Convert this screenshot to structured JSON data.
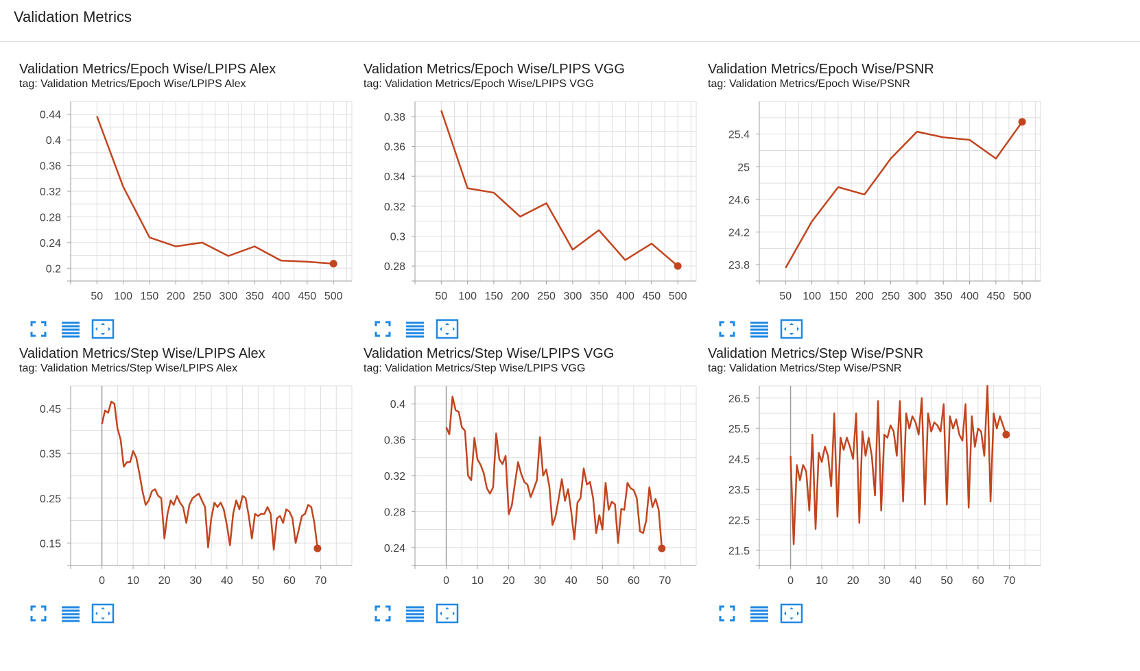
{
  "header": {
    "title": "Validation Metrics"
  },
  "colors": {
    "line": "#C2451F",
    "grid": "#dddddd",
    "axis": "#9e9e9e",
    "icon": "#1e88e5"
  },
  "toolbar": {
    "icons": [
      "fullscreen-icon",
      "list-icon",
      "fit-domain-icon"
    ]
  },
  "chart_data": [
    {
      "type": "line",
      "title": "Validation Metrics/Epoch Wise/LPIPS Alex",
      "tag": "tag: Validation Metrics/Epoch Wise/LPIPS Alex",
      "xlim": [
        0,
        535
      ],
      "ylim": [
        0.18,
        0.46
      ],
      "xticks": [
        50,
        100,
        150,
        200,
        250,
        300,
        350,
        400,
        450,
        500
      ],
      "yticks": [
        0.2,
        0.24,
        0.28,
        0.32,
        0.36,
        0.4,
        0.44
      ],
      "ytick_labels": [
        "0.2",
        "0.24",
        "0.28",
        "0.32",
        "0.36",
        "0.4",
        "0.44"
      ],
      "show_y_zero_axis": false,
      "x": [
        50,
        100,
        150,
        200,
        250,
        300,
        350,
        400,
        450,
        500
      ],
      "y": [
        0.437,
        0.327,
        0.248,
        0.234,
        0.24,
        0.219,
        0.234,
        0.212,
        0.21,
        0.207
      ]
    },
    {
      "type": "line",
      "title": "Validation Metrics/Epoch Wise/LPIPS VGG",
      "tag": "tag: Validation Metrics/Epoch Wise/LPIPS VGG",
      "xlim": [
        0,
        535
      ],
      "ylim": [
        0.27,
        0.39
      ],
      "xticks": [
        50,
        100,
        150,
        200,
        250,
        300,
        350,
        400,
        450,
        500
      ],
      "yticks": [
        0.28,
        0.3,
        0.32,
        0.34,
        0.36,
        0.38
      ],
      "ytick_labels": [
        "0.28",
        "0.3",
        "0.32",
        "0.34",
        "0.36",
        "0.38"
      ],
      "show_y_zero_axis": false,
      "x": [
        50,
        100,
        150,
        200,
        250,
        300,
        350,
        400,
        450,
        500
      ],
      "y": [
        0.384,
        0.332,
        0.329,
        0.313,
        0.322,
        0.291,
        0.304,
        0.284,
        0.295,
        0.28
      ]
    },
    {
      "type": "line",
      "title": "Validation Metrics/Epoch Wise/PSNR",
      "tag": "tag: Validation Metrics/Epoch Wise/PSNR",
      "xlim": [
        0,
        535
      ],
      "ylim": [
        23.6,
        25.8
      ],
      "xticks": [
        50,
        100,
        150,
        200,
        250,
        300,
        350,
        400,
        450,
        500
      ],
      "yticks": [
        23.8,
        24.2,
        24.6,
        25.0,
        25.4
      ],
      "ytick_labels": [
        "23.8",
        "24.2",
        "24.6",
        "25",
        "25.4"
      ],
      "show_y_zero_axis": false,
      "x": [
        50,
        100,
        150,
        200,
        250,
        300,
        350,
        400,
        450,
        500
      ],
      "y": [
        23.76,
        24.33,
        24.75,
        24.66,
        25.1,
        25.43,
        25.36,
        25.33,
        25.1,
        25.55
      ]
    },
    {
      "type": "line",
      "title": "Validation Metrics/Step Wise/LPIPS Alex",
      "tag": "tag: Validation Metrics/Step Wise/LPIPS Alex",
      "xlim": [
        -10,
        80
      ],
      "ylim": [
        0.1,
        0.5
      ],
      "xticks": [
        0,
        10,
        20,
        30,
        40,
        50,
        60,
        70
      ],
      "yticks": [
        0.15,
        0.25,
        0.35,
        0.45
      ],
      "ytick_labels": [
        "0.15",
        "0.25",
        "0.35",
        "0.45"
      ],
      "show_y_zero_axis": true,
      "x": [
        0,
        1,
        2,
        3,
        4,
        5,
        6,
        7,
        8,
        9,
        10,
        11,
        12,
        13,
        14,
        15,
        16,
        17,
        18,
        19,
        20,
        21,
        22,
        23,
        24,
        25,
        26,
        27,
        28,
        29,
        30,
        31,
        32,
        33,
        34,
        35,
        36,
        37,
        38,
        39,
        40,
        41,
        42,
        43,
        44,
        45,
        46,
        47,
        48,
        49,
        50,
        51,
        52,
        53,
        54,
        55,
        56,
        57,
        58,
        59,
        60,
        61,
        62,
        63,
        64,
        65,
        66,
        67,
        68,
        69
      ],
      "y": [
        0.415,
        0.445,
        0.44,
        0.465,
        0.46,
        0.405,
        0.38,
        0.32,
        0.33,
        0.33,
        0.355,
        0.34,
        0.305,
        0.265,
        0.235,
        0.245,
        0.265,
        0.27,
        0.255,
        0.25,
        0.16,
        0.215,
        0.245,
        0.235,
        0.255,
        0.24,
        0.23,
        0.195,
        0.235,
        0.25,
        0.255,
        0.26,
        0.245,
        0.23,
        0.14,
        0.205,
        0.24,
        0.23,
        0.24,
        0.225,
        0.19,
        0.145,
        0.215,
        0.245,
        0.225,
        0.255,
        0.25,
        0.21,
        0.16,
        0.215,
        0.21,
        0.215,
        0.215,
        0.23,
        0.215,
        0.135,
        0.205,
        0.21,
        0.195,
        0.225,
        0.22,
        0.205,
        0.15,
        0.18,
        0.21,
        0.215,
        0.235,
        0.23,
        0.195,
        0.138
      ]
    },
    {
      "type": "line",
      "title": "Validation Metrics/Step Wise/LPIPS VGG",
      "tag": "tag: Validation Metrics/Step Wise/LPIPS VGG",
      "xlim": [
        -10,
        80
      ],
      "ylim": [
        0.22,
        0.42
      ],
      "xticks": [
        0,
        10,
        20,
        30,
        40,
        50,
        60,
        70
      ],
      "yticks": [
        0.24,
        0.28,
        0.32,
        0.36,
        0.4
      ],
      "ytick_labels": [
        "0.24",
        "0.28",
        "0.32",
        "0.36",
        "0.4"
      ],
      "show_y_zero_axis": true,
      "x": [
        0,
        1,
        2,
        3,
        4,
        5,
        6,
        7,
        8,
        9,
        10,
        11,
        12,
        13,
        14,
        15,
        16,
        17,
        18,
        19,
        20,
        21,
        22,
        23,
        24,
        25,
        26,
        27,
        28,
        29,
        30,
        31,
        32,
        33,
        34,
        35,
        36,
        37,
        38,
        39,
        40,
        41,
        42,
        43,
        44,
        45,
        46,
        47,
        48,
        49,
        50,
        51,
        52,
        53,
        54,
        55,
        56,
        57,
        58,
        59,
        60,
        61,
        62,
        63,
        64,
        65,
        66,
        67,
        68,
        69
      ],
      "y": [
        0.374,
        0.366,
        0.408,
        0.393,
        0.391,
        0.374,
        0.37,
        0.32,
        0.315,
        0.362,
        0.338,
        0.332,
        0.323,
        0.306,
        0.3,
        0.307,
        0.367,
        0.338,
        0.333,
        0.342,
        0.277,
        0.287,
        0.312,
        0.335,
        0.322,
        0.313,
        0.31,
        0.296,
        0.305,
        0.315,
        0.363,
        0.32,
        0.327,
        0.308,
        0.265,
        0.275,
        0.295,
        0.316,
        0.292,
        0.305,
        0.28,
        0.249,
        0.29,
        0.295,
        0.328,
        0.31,
        0.313,
        0.295,
        0.256,
        0.276,
        0.26,
        0.312,
        0.282,
        0.291,
        0.288,
        0.245,
        0.283,
        0.282,
        0.312,
        0.306,
        0.304,
        0.295,
        0.258,
        0.256,
        0.27,
        0.307,
        0.285,
        0.294,
        0.282,
        0.239
      ]
    },
    {
      "type": "line",
      "title": "Validation Metrics/Step Wise/PSNR",
      "tag": "tag: Validation Metrics/Step Wise/PSNR",
      "xlim": [
        -10,
        80
      ],
      "ylim": [
        21.0,
        26.9
      ],
      "xticks": [
        0,
        10,
        20,
        30,
        40,
        50,
        60,
        70
      ],
      "yticks": [
        21.5,
        22.5,
        23.5,
        24.5,
        25.5,
        26.5
      ],
      "ytick_labels": [
        "21.5",
        "22.5",
        "23.5",
        "24.5",
        "25.5",
        "26.5"
      ],
      "show_y_zero_axis": true,
      "x": [
        0,
        1,
        2,
        3,
        4,
        5,
        6,
        7,
        8,
        9,
        10,
        11,
        12,
        13,
        14,
        15,
        16,
        17,
        18,
        19,
        20,
        21,
        22,
        23,
        24,
        25,
        26,
        27,
        28,
        29,
        30,
        31,
        32,
        33,
        34,
        35,
        36,
        37,
        38,
        39,
        40,
        41,
        42,
        43,
        44,
        45,
        46,
        47,
        48,
        49,
        50,
        51,
        52,
        53,
        54,
        55,
        56,
        57,
        58,
        59,
        60,
        61,
        62,
        63,
        64,
        65,
        66,
        67,
        68,
        69
      ],
      "y": [
        24.6,
        21.7,
        24.3,
        23.8,
        24.3,
        24.1,
        22.8,
        25.3,
        22.2,
        24.7,
        24.4,
        24.9,
        24.6,
        23.6,
        26.0,
        22.6,
        25.2,
        24.8,
        25.2,
        24.9,
        24.5,
        26.0,
        22.4,
        25.4,
        24.6,
        25.2,
        24.6,
        23.3,
        26.4,
        22.8,
        25.3,
        25.2,
        25.6,
        25.4,
        24.6,
        26.4,
        23.1,
        26.0,
        25.5,
        25.9,
        25.7,
        25.3,
        26.5,
        23.0,
        26.0,
        25.4,
        25.7,
        25.6,
        25.4,
        26.3,
        23.0,
        25.9,
        25.5,
        25.8,
        25.3,
        25.1,
        26.3,
        22.9,
        25.9,
        24.9,
        25.5,
        25.4,
        24.6,
        26.9,
        23.1,
        26.0,
        25.5,
        25.9,
        25.6,
        25.3
      ]
    }
  ]
}
